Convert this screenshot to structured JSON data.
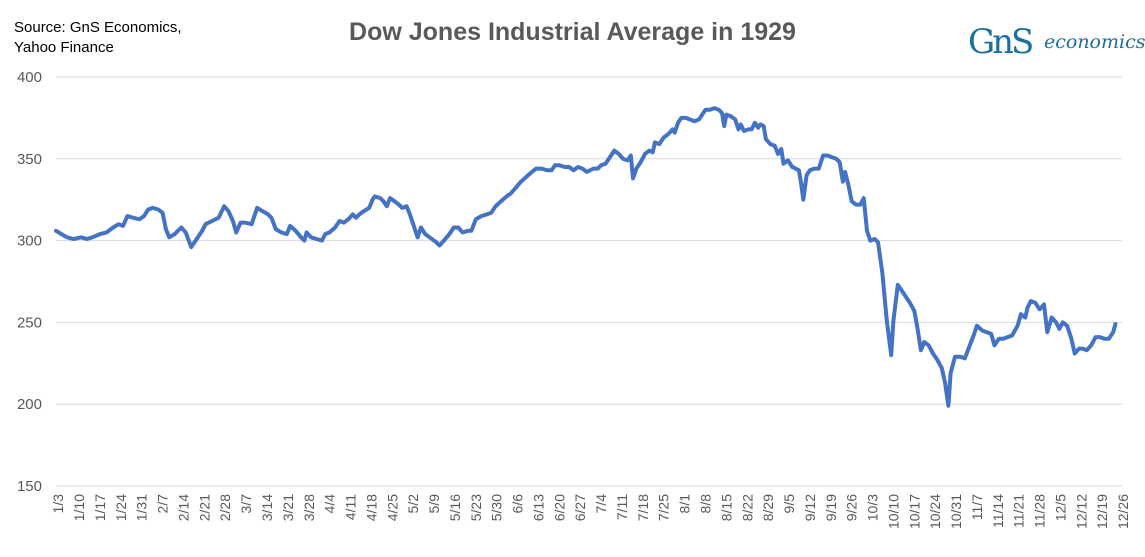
{
  "source": {
    "line1": "Source: GnS Economics,",
    "line2": "Yahoo Finance"
  },
  "logo": {
    "mark": "GnS",
    "word": "economics"
  },
  "colors": {
    "line": "#4472c4",
    "grid": "#d9d9d9",
    "text": "#595959",
    "brand": "#1b6e9e"
  },
  "chart_data": {
    "type": "line",
    "title": "Dow Jones Industrial Average in 1929",
    "xlabel": "",
    "ylabel": "",
    "ylim": [
      150,
      400
    ],
    "yticks": [
      "150",
      "200",
      "250",
      "300",
      "350",
      "400"
    ],
    "xticks": [
      "1/3",
      "1/10",
      "1/17",
      "1/24",
      "1/31",
      "2/7",
      "2/14",
      "2/21",
      "2/28",
      "3/7",
      "3/14",
      "3/21",
      "3/28",
      "4/4",
      "4/11",
      "4/18",
      "4/25",
      "5/2",
      "5/9",
      "5/16",
      "5/23",
      "5/30",
      "6/6",
      "6/13",
      "6/20",
      "6/27",
      "7/4",
      "7/11",
      "7/18",
      "7/25",
      "8/1",
      "8/8",
      "8/15",
      "8/22",
      "8/29",
      "9/5",
      "9/12",
      "9/19",
      "9/26",
      "10/3",
      "10/10",
      "10/17",
      "10/24",
      "10/31",
      "11/7",
      "11/14",
      "11/21",
      "11/28",
      "12/5",
      "12/12",
      "12/19",
      "12/26"
    ],
    "grid": true,
    "series": [
      {
        "name": "Dow Jones Industrial Average",
        "points": [
          [
            0,
            306
          ],
          [
            0.5,
            304
          ],
          [
            1,
            302
          ],
          [
            1.6,
            301
          ],
          [
            2.3,
            302
          ],
          [
            2.8,
            301
          ],
          [
            3.3,
            302
          ],
          [
            4,
            304
          ],
          [
            4.6,
            305
          ],
          [
            5.2,
            308
          ],
          [
            5.7,
            310
          ],
          [
            6.1,
            309
          ],
          [
            6.5,
            315
          ],
          [
            7,
            314
          ],
          [
            7.6,
            313
          ],
          [
            8,
            315
          ],
          [
            8.4,
            319
          ],
          [
            8.8,
            320
          ],
          [
            9.3,
            319
          ],
          [
            9.7,
            317
          ],
          [
            10,
            307
          ],
          [
            10.3,
            302
          ],
          [
            10.8,
            304
          ],
          [
            11.4,
            308
          ],
          [
            11.8,
            305
          ],
          [
            12.3,
            296
          ],
          [
            12.8,
            301
          ],
          [
            13.3,
            306
          ],
          [
            13.6,
            310
          ],
          [
            14.2,
            312
          ],
          [
            14.8,
            314
          ],
          [
            15.3,
            321
          ],
          [
            15.7,
            318
          ],
          [
            16.1,
            312
          ],
          [
            16.4,
            305
          ],
          [
            16.8,
            311
          ],
          [
            17.2,
            311
          ],
          [
            17.8,
            310
          ],
          [
            18.3,
            320
          ],
          [
            18.8,
            318
          ],
          [
            19.3,
            316
          ],
          [
            19.6,
            314
          ],
          [
            20.0,
            307
          ],
          [
            20.5,
            305
          ],
          [
            21,
            304
          ],
          [
            21.3,
            309
          ],
          [
            21.8,
            306
          ],
          [
            22.3,
            302
          ],
          [
            22.6,
            300
          ],
          [
            22.8,
            305
          ],
          [
            23.2,
            302
          ],
          [
            23.7,
            301
          ],
          [
            24.2,
            300
          ],
          [
            24.5,
            304
          ],
          [
            24.9,
            305
          ],
          [
            25.4,
            308
          ],
          [
            25.8,
            312
          ],
          [
            26.2,
            311
          ],
          [
            26.6,
            313
          ],
          [
            27,
            316
          ],
          [
            27.3,
            314
          ],
          [
            27.6,
            316
          ],
          [
            28,
            318
          ],
          [
            28.5,
            320
          ],
          [
            28.8,
            325
          ],
          [
            29,
            327
          ],
          [
            29.5,
            326
          ],
          [
            29.8,
            324
          ],
          [
            30.1,
            321
          ],
          [
            30.4,
            326
          ],
          [
            30.8,
            324
          ],
          [
            31.2,
            322
          ],
          [
            31.5,
            320
          ],
          [
            31.9,
            321
          ],
          [
            32.2,
            316
          ],
          [
            32.6,
            308
          ],
          [
            32.9,
            302
          ],
          [
            33.2,
            308
          ],
          [
            33.6,
            304
          ],
          [
            34,
            302
          ],
          [
            34.6,
            299
          ],
          [
            34.9,
            297
          ],
          [
            35.3,
            300
          ],
          [
            35.8,
            304
          ],
          [
            36.2,
            308
          ],
          [
            36.6,
            308
          ],
          [
            37,
            305
          ],
          [
            37.5,
            306
          ],
          [
            37.8,
            306
          ],
          [
            38.2,
            313
          ],
          [
            38.7,
            315
          ],
          [
            39.2,
            316
          ],
          [
            39.6,
            317
          ],
          [
            40,
            321
          ],
          [
            40.5,
            324
          ],
          [
            41,
            327
          ],
          [
            41.4,
            329
          ],
          [
            41.8,
            332
          ],
          [
            42.3,
            336
          ],
          [
            42.8,
            339
          ],
          [
            43.3,
            342
          ],
          [
            43.7,
            344
          ],
          [
            44.2,
            344
          ],
          [
            44.7,
            343
          ],
          [
            45.1,
            343
          ],
          [
            45.4,
            346
          ],
          [
            45.8,
            346
          ],
          [
            46.3,
            345
          ],
          [
            46.7,
            345
          ],
          [
            47.1,
            343
          ],
          [
            47.5,
            345
          ],
          [
            47.9,
            344
          ],
          [
            48.3,
            342
          ],
          [
            48.6,
            343
          ],
          [
            48.9,
            344
          ],
          [
            49.3,
            344
          ],
          [
            49.6,
            346
          ],
          [
            50,
            347
          ],
          [
            50.4,
            351
          ],
          [
            50.8,
            355
          ],
          [
            51.2,
            353
          ],
          [
            51.6,
            350
          ],
          [
            52,
            349
          ],
          [
            52.3,
            352
          ],
          [
            52.5,
            338
          ],
          [
            52.8,
            344
          ],
          [
            53.2,
            348
          ],
          [
            53.6,
            353
          ],
          [
            54,
            355
          ],
          [
            54.3,
            354
          ],
          [
            54.5,
            360
          ],
          [
            54.9,
            359
          ],
          [
            55.3,
            363
          ],
          [
            55.7,
            365
          ],
          [
            56.1,
            368
          ],
          [
            56.3,
            366
          ],
          [
            56.6,
            372
          ],
          [
            56.9,
            375
          ],
          [
            57.3,
            375
          ],
          [
            57.7,
            374
          ],
          [
            58.1,
            373
          ],
          [
            58.5,
            374
          ],
          [
            58.8,
            377
          ],
          [
            59.1,
            380
          ],
          [
            59.5,
            380
          ],
          [
            59.9,
            381
          ],
          [
            60.3,
            380
          ],
          [
            60.6,
            378
          ],
          [
            60.8,
            370
          ],
          [
            61,
            377
          ],
          [
            61.4,
            376
          ],
          [
            61.8,
            374
          ],
          [
            62.1,
            368
          ],
          [
            62.3,
            371
          ],
          [
            62.6,
            367
          ],
          [
            63,
            368
          ],
          [
            63.3,
            368
          ],
          [
            63.6,
            372
          ],
          [
            63.9,
            369
          ],
          [
            64.1,
            371
          ],
          [
            64.4,
            370
          ],
          [
            64.6,
            362
          ],
          [
            65,
            359
          ],
          [
            65.4,
            358
          ],
          [
            65.7,
            353
          ],
          [
            66,
            356
          ],
          [
            66.2,
            347
          ],
          [
            66.6,
            349
          ],
          [
            67,
            345
          ],
          [
            67.3,
            344
          ],
          [
            67.6,
            343
          ],
          [
            67.8,
            335
          ],
          [
            68,
            325
          ],
          [
            68.3,
            340
          ],
          [
            68.6,
            343
          ],
          [
            69,
            344
          ],
          [
            69.4,
            344
          ],
          [
            69.8,
            352
          ],
          [
            70.2,
            352
          ],
          [
            70.6,
            351
          ],
          [
            71,
            350
          ],
          [
            71.3,
            348
          ],
          [
            71.6,
            336
          ],
          [
            71.8,
            342
          ],
          [
            72.1,
            334
          ],
          [
            72.4,
            324
          ],
          [
            72.8,
            322
          ],
          [
            73.2,
            322
          ],
          [
            73.5,
            326
          ],
          [
            73.8,
            306
          ],
          [
            74.1,
            300
          ],
          [
            74.5,
            301
          ],
          [
            74.8,
            299
          ],
          [
            75.2,
            280
          ],
          [
            75.6,
            251
          ],
          [
            76,
            230
          ],
          [
            76.2,
            251
          ],
          [
            76.6,
            273
          ],
          [
            77,
            269
          ],
          [
            77.4,
            265
          ],
          [
            77.7,
            262
          ],
          [
            78.1,
            257
          ],
          [
            78.4,
            246
          ],
          [
            78.7,
            233
          ],
          [
            79,
            238
          ],
          [
            79.4,
            236
          ],
          [
            79.8,
            231
          ],
          [
            80.2,
            227
          ],
          [
            80.6,
            222
          ],
          [
            80.9,
            213
          ],
          [
            81.2,
            199
          ],
          [
            81.4,
            219
          ],
          [
            81.8,
            229
          ],
          [
            82.3,
            229
          ],
          [
            82.7,
            228
          ],
          [
            83.1,
            235
          ],
          [
            83.5,
            242
          ],
          [
            83.8,
            248
          ],
          [
            84.3,
            245
          ],
          [
            84.7,
            244
          ],
          [
            85.1,
            243
          ],
          [
            85.4,
            236
          ],
          [
            85.8,
            240
          ],
          [
            86.2,
            240
          ],
          [
            86.6,
            241
          ],
          [
            87,
            242
          ],
          [
            87.5,
            248
          ],
          [
            87.8,
            255
          ],
          [
            88.2,
            253
          ],
          [
            88.4,
            259
          ],
          [
            88.7,
            263
          ],
          [
            89.1,
            262
          ],
          [
            89.5,
            258
          ],
          [
            89.9,
            261
          ],
          [
            90.2,
            244
          ],
          [
            90.6,
            253
          ],
          [
            91,
            250
          ],
          [
            91.3,
            246
          ],
          [
            91.6,
            250
          ],
          [
            92,
            248
          ],
          [
            92.4,
            240
          ],
          [
            92.7,
            231
          ],
          [
            93.1,
            234
          ],
          [
            93.4,
            234
          ],
          [
            93.8,
            233
          ],
          [
            94.2,
            236
          ],
          [
            94.6,
            241
          ],
          [
            95,
            241
          ],
          [
            95.4,
            240
          ],
          [
            95.8,
            240
          ],
          [
            96.2,
            244
          ],
          [
            96.4,
            249
          ]
        ]
      }
    ]
  }
}
